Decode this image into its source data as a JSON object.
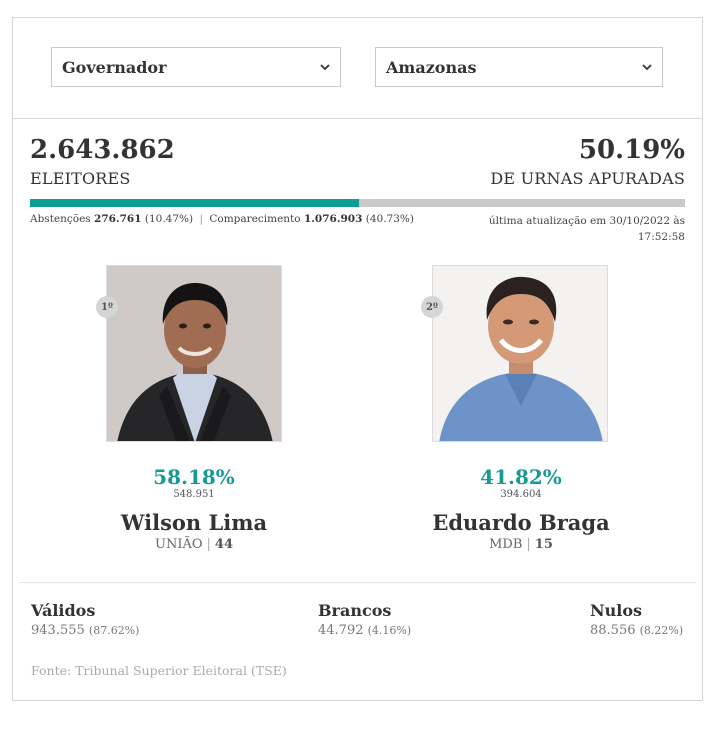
{
  "filters": {
    "office": "Governador",
    "state": "Amazonas"
  },
  "summary": {
    "voters_value": "2.643.862",
    "voters_label": "ELEITORES",
    "counted_value": "50.19%",
    "counted_label": "DE URNAS APURADAS",
    "counted_fraction": 0.5019,
    "abstention_label": "Abstenções",
    "abstention_value": "276.761",
    "abstention_pct": "(10.47%)",
    "turnout_label": "Comparecimento",
    "turnout_value": "1.076.903",
    "turnout_pct": "(40.73%)",
    "updated_line1": "última atualização em 30/10/2022 às",
    "updated_line2": "17:52:58"
  },
  "candidates": [
    {
      "rank": "1º",
      "percent": "58.18%",
      "votes": "548.951",
      "name": "Wilson Lima",
      "party": "UNIÃO",
      "number": "44"
    },
    {
      "rank": "2º",
      "percent": "41.82%",
      "votes": "394.604",
      "name": "Eduardo Braga",
      "party": "MDB",
      "number": "15"
    }
  ],
  "totals": {
    "valid": {
      "label": "Válidos",
      "value": "943.555",
      "pct": "(87.62%)"
    },
    "blank": {
      "label": "Brancos",
      "value": "44.792",
      "pct": "(4.16%)"
    },
    "null": {
      "label": "Nulos",
      "value": "88.556",
      "pct": "(8.22%)"
    }
  },
  "source": "Fonte: Tribunal Superior Eleitoral (TSE)",
  "colors": {
    "accent": "#169a95",
    "bar_fill": "#0e9c97",
    "bar_track": "#c8c8c8"
  },
  "icons": {
    "select_arrow": "chevron-down-icon"
  }
}
